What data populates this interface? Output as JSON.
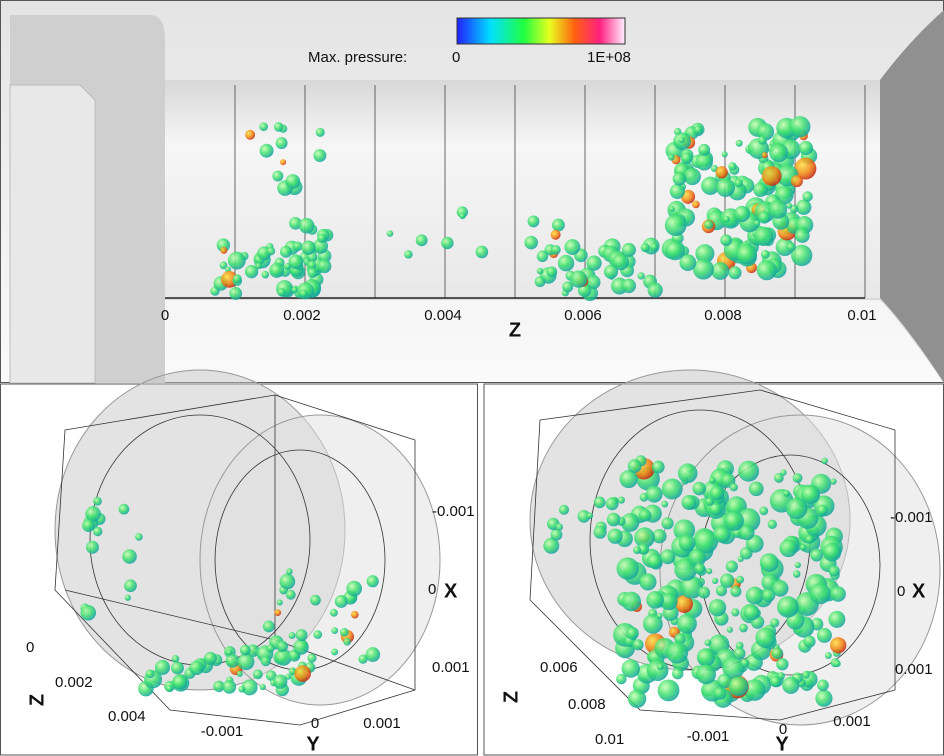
{
  "colorbar": {
    "title": "Max. pressure:",
    "min_label": "0",
    "max_label": "1E+08"
  },
  "top_panel": {
    "axis_title": "Z",
    "ticks": [
      "0",
      "0.002",
      "0.004",
      "0.006",
      "0.008",
      "0.01"
    ]
  },
  "bottom_left": {
    "z_title": "Z",
    "z_ticks": [
      "0",
      "0.002",
      "0.004"
    ],
    "y_title": "Y",
    "y_ticks": [
      "-0.001",
      "0",
      "0.001"
    ],
    "x_title": "X",
    "x_ticks": [
      "-0.001",
      "0",
      "0.001"
    ]
  },
  "bottom_right": {
    "z_title": "Z",
    "z_ticks": [
      "0.006",
      "0.008",
      "0.01"
    ],
    "y_title": "Y",
    "y_ticks": [
      "-0.001",
      "0",
      "0.001"
    ],
    "x_title": "X",
    "x_ticks": [
      "-0.001",
      "0",
      "0.001"
    ]
  }
}
